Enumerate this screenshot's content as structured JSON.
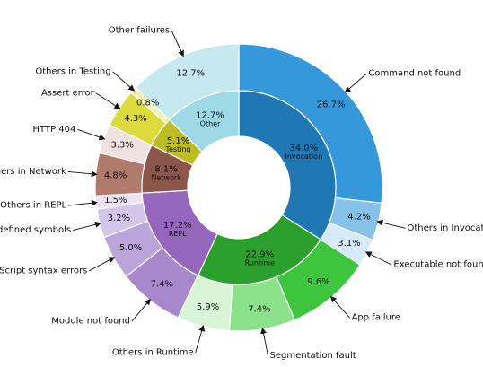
{
  "chart_data": {
    "type": "pie",
    "subtype": "nested donut",
    "title": "",
    "inner": [
      {
        "name": "Invocation",
        "value": 34.0,
        "label": "34.0%",
        "color": "#1f77b4"
      },
      {
        "name": "Runtime",
        "value": 22.9,
        "label": "22.9%",
        "color": "#2ca02c"
      },
      {
        "name": "REPL",
        "value": 17.2,
        "label": "17.2%",
        "color": "#9467bd"
      },
      {
        "name": "Network",
        "value": 8.1,
        "label": "8.1%",
        "color": "#8c564b"
      },
      {
        "name": "Testing",
        "value": 5.1,
        "label": "5.1%",
        "color": "#bcbd22"
      },
      {
        "name": "Other",
        "value": 12.7,
        "label": "12.7%",
        "color": "#9edae5"
      }
    ],
    "outer": [
      {
        "name": "Command not found",
        "group": "Invocation",
        "value": 26.7,
        "label": "26.7%",
        "color": "#3498db"
      },
      {
        "name": "Others in Invocation",
        "group": "Invocation",
        "value": 4.2,
        "label": "4.2%",
        "color": "#85c1e9"
      },
      {
        "name": "Executable not found",
        "group": "Invocation",
        "value": 3.1,
        "label": "3.1%",
        "color": "#d6eaf8"
      },
      {
        "name": "App failure",
        "group": "Runtime",
        "value": 9.6,
        "label": "9.6%",
        "color": "#3dc63d"
      },
      {
        "name": "Segmentation fault",
        "group": "Runtime",
        "value": 7.4,
        "label": "7.4%",
        "color": "#8be28b"
      },
      {
        "name": "Others in Runtime",
        "group": "Runtime",
        "value": 5.9,
        "label": "5.9%",
        "color": "#d8f5d8"
      },
      {
        "name": "Module not found",
        "group": "REPL",
        "value": 7.4,
        "label": "7.4%",
        "color": "#a888cc"
      },
      {
        "name": "Script syntax errors",
        "group": "REPL",
        "value": 5.0,
        "label": "5.0%",
        "color": "#bba4d9"
      },
      {
        "name": "Undefined symbols",
        "group": "REPL",
        "value": 3.2,
        "label": "3.2%",
        "color": "#d4c5ea"
      },
      {
        "name": "Others in REPL",
        "group": "REPL",
        "value": 1.5,
        "label": "1.5%",
        "color": "#ece3f5"
      },
      {
        "name": "Others in Network",
        "group": "Network",
        "value": 4.8,
        "label": "4.8%",
        "color": "#b07a6c"
      },
      {
        "name": "HTTP 404",
        "group": "Network",
        "value": 3.3,
        "label": "3.3%",
        "color": "#f0e2df"
      },
      {
        "name": "Assert error",
        "group": "Testing",
        "value": 4.3,
        "label": "4.3%",
        "color": "#dbdb3d"
      },
      {
        "name": "Others in Testing",
        "group": "Testing",
        "value": 0.8,
        "label": "0.8%",
        "color": "#f2f2b3"
      },
      {
        "name": "Other failures",
        "group": "Other",
        "value": 12.7,
        "label": "12.7%",
        "color": "#c6e9f0"
      }
    ]
  }
}
